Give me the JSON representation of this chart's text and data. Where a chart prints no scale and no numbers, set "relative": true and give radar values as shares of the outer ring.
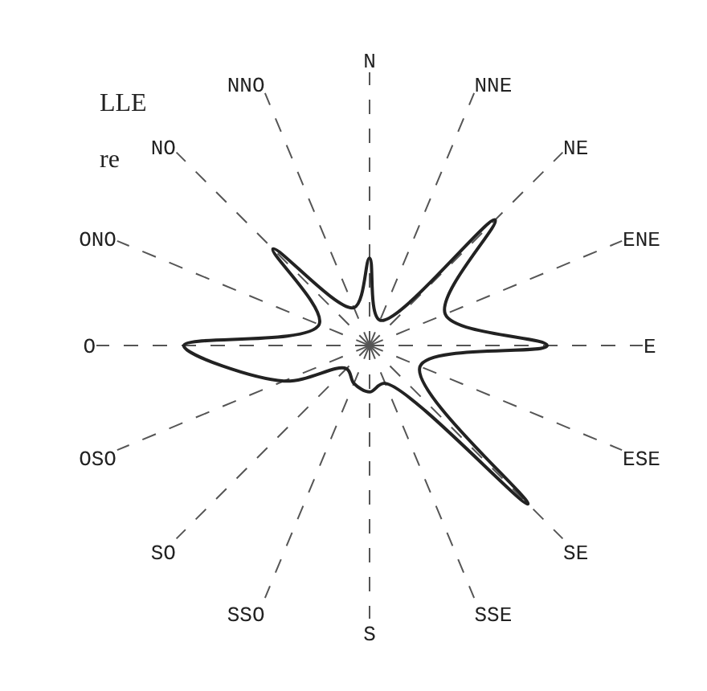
{
  "chart_data": {
    "type": "radar",
    "relative": true,
    "grid": true,
    "legend": false,
    "marker": "none",
    "line_style": "solid",
    "categories": [
      "N",
      "NNE",
      "NE",
      "ENE",
      "E",
      "ESE",
      "SE",
      "SSE",
      "S",
      "SSO",
      "SO",
      "OSO",
      "O",
      "ONO",
      "NO",
      "NNO"
    ],
    "series": [
      {
        "color": "#222222",
        "values": [
          0.32,
          0.1,
          0.65,
          0.3,
          0.65,
          0.2,
          0.82,
          0.15,
          0.17,
          0.15,
          0.12,
          0.34,
          0.68,
          0.2,
          0.5,
          0.15
        ]
      }
    ],
    "annotations": [
      "LLE",
      "re"
    ]
  }
}
